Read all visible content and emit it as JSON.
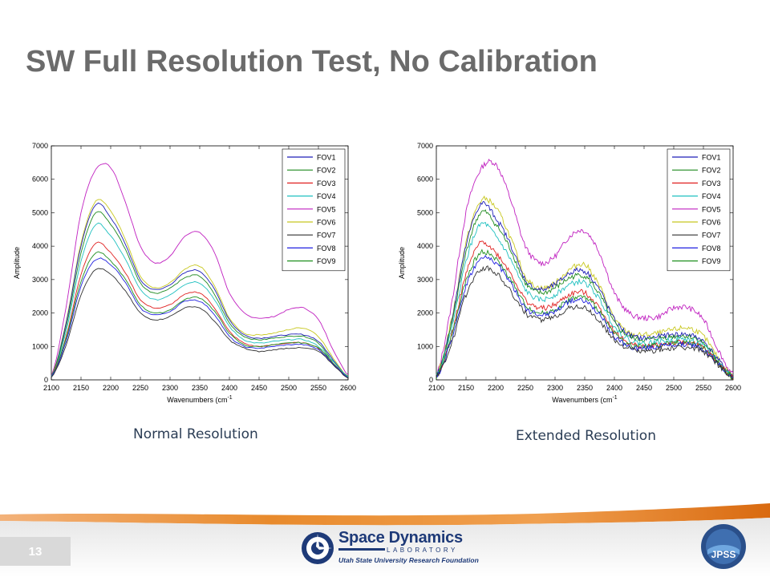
{
  "slide": {
    "title": "SW Full Resolution Test, No Calibration",
    "page_number": "13"
  },
  "captions": {
    "left": "Normal Resolution",
    "right": "Extended Resolution"
  },
  "logo": {
    "name": "Space Dynamics",
    "lab": "LABORATORY",
    "subtitle": "Utah State University Research Foundation",
    "jpss": "JPSS"
  },
  "chart_data": [
    {
      "type": "line",
      "title": "",
      "xlabel": "Wavenumbers (cm",
      "xlabel_sup": "-1",
      "ylabel": "Amplitude",
      "xlim": [
        2100,
        2600
      ],
      "ylim": [
        0,
        7000
      ],
      "xticks": [
        2100,
        2150,
        2200,
        2250,
        2300,
        2350,
        2400,
        2450,
        2500,
        2550,
        2600
      ],
      "yticks": [
        0,
        1000,
        2000,
        3000,
        4000,
        5000,
        6000,
        7000
      ],
      "legend_position": "top-right",
      "x": [
        2100,
        2125,
        2150,
        2175,
        2200,
        2225,
        2250,
        2275,
        2300,
        2325,
        2350,
        2375,
        2400,
        2425,
        2450,
        2475,
        2500,
        2525,
        2550,
        2575,
        2600
      ],
      "series": [
        {
          "name": "FOV1",
          "values": [
            100,
            1700,
            4000,
            5250,
            4850,
            4050,
            3000,
            2700,
            2850,
            3200,
            3250,
            2700,
            1800,
            1350,
            1250,
            1300,
            1350,
            1350,
            1150,
            600,
            100
          ]
        },
        {
          "name": "FOV2",
          "values": [
            100,
            1600,
            3800,
            5000,
            4650,
            3900,
            2900,
            2600,
            2750,
            3050,
            3100,
            2550,
            1700,
            1300,
            1200,
            1250,
            1300,
            1300,
            1100,
            550,
            100
          ]
        },
        {
          "name": "FOV3",
          "values": [
            100,
            1300,
            3150,
            4100,
            3800,
            3200,
            2400,
            2150,
            2250,
            2550,
            2600,
            2150,
            1450,
            1100,
            1000,
            1050,
            1100,
            1100,
            950,
            500,
            80
          ]
        },
        {
          "name": "FOV4",
          "values": [
            100,
            1450,
            3550,
            4650,
            4300,
            3600,
            2700,
            2400,
            2550,
            2850,
            2900,
            2400,
            1600,
            1200,
            1100,
            1150,
            1200,
            1200,
            1000,
            550,
            100
          ]
        },
        {
          "name": "FOV5",
          "values": [
            120,
            2200,
            5000,
            6300,
            6350,
            5300,
            4000,
            3500,
            3700,
            4300,
            4400,
            3800,
            2600,
            2000,
            1850,
            1900,
            2100,
            2150,
            1800,
            900,
            150
          ]
        },
        {
          "name": "FOV6",
          "values": [
            110,
            1750,
            4100,
            5350,
            5050,
            4200,
            3100,
            2750,
            2900,
            3300,
            3400,
            2800,
            1850,
            1400,
            1350,
            1400,
            1500,
            1550,
            1300,
            650,
            110
          ]
        },
        {
          "name": "FOV7",
          "values": [
            80,
            1050,
            2550,
            3300,
            3150,
            2650,
            2000,
            1800,
            1900,
            2150,
            2150,
            1750,
            1200,
            950,
            850,
            900,
            950,
            950,
            850,
            450,
            60
          ]
        },
        {
          "name": "FOV8",
          "values": [
            90,
            1150,
            2800,
            3600,
            3450,
            2900,
            2150,
            1950,
            2050,
            2350,
            2350,
            1950,
            1300,
            1000,
            950,
            1000,
            1050,
            1050,
            900,
            480,
            70
          ]
        },
        {
          "name": "FOV9",
          "values": [
            90,
            1250,
            2950,
            3800,
            3550,
            3000,
            2250,
            2000,
            2100,
            2400,
            2450,
            2050,
            1400,
            1050,
            1000,
            1050,
            1100,
            1100,
            950,
            500,
            75
          ]
        }
      ]
    },
    {
      "type": "line",
      "title": "",
      "xlabel": "Wavenumbers (cm",
      "xlabel_sup": "-1",
      "ylabel": "Amplitude",
      "xlim": [
        2100,
        2600
      ],
      "ylim": [
        0,
        7000
      ],
      "xticks": [
        2100,
        2150,
        2200,
        2250,
        2300,
        2350,
        2400,
        2450,
        2500,
        2550,
        2600
      ],
      "yticks": [
        0,
        1000,
        2000,
        3000,
        4000,
        5000,
        6000,
        7000
      ],
      "legend_position": "top-right",
      "x": [
        2100,
        2125,
        2150,
        2175,
        2200,
        2225,
        2250,
        2275,
        2300,
        2325,
        2350,
        2375,
        2400,
        2425,
        2450,
        2475,
        2500,
        2525,
        2550,
        2575,
        2600
      ],
      "series": [
        {
          "name": "FOV1",
          "values": [
            100,
            1700,
            4000,
            5250,
            4850,
            4050,
            3000,
            2700,
            2850,
            3200,
            3250,
            2700,
            1800,
            1350,
            1250,
            1300,
            1350,
            1350,
            1150,
            600,
            100
          ]
        },
        {
          "name": "FOV2",
          "values": [
            100,
            1600,
            3800,
            5000,
            4650,
            3900,
            2900,
            2600,
            2750,
            3050,
            3100,
            2550,
            1700,
            1300,
            1200,
            1250,
            1300,
            1300,
            1100,
            550,
            100
          ]
        },
        {
          "name": "FOV3",
          "values": [
            100,
            1300,
            3150,
            4100,
            3800,
            3200,
            2400,
            2150,
            2250,
            2550,
            2600,
            2150,
            1450,
            1100,
            1000,
            1050,
            1100,
            1100,
            950,
            500,
            80
          ]
        },
        {
          "name": "FOV4",
          "values": [
            100,
            1450,
            3550,
            4650,
            4300,
            3600,
            2700,
            2400,
            2550,
            2850,
            2900,
            2400,
            1600,
            1200,
            1100,
            1150,
            1200,
            1200,
            1000,
            550,
            100
          ]
        },
        {
          "name": "FOV5",
          "values": [
            120,
            2200,
            5000,
            6300,
            6450,
            5400,
            4000,
            3500,
            3700,
            4300,
            4450,
            3800,
            2600,
            2000,
            1850,
            1900,
            2150,
            2150,
            1800,
            900,
            150
          ]
        },
        {
          "name": "FOV6",
          "values": [
            110,
            1750,
            4100,
            5350,
            5150,
            4250,
            3100,
            2750,
            2900,
            3300,
            3450,
            2800,
            1850,
            1400,
            1350,
            1400,
            1500,
            1550,
            1300,
            650,
            110
          ]
        },
        {
          "name": "FOV7",
          "values": [
            80,
            1050,
            2550,
            3300,
            3200,
            2650,
            2000,
            1800,
            1900,
            2150,
            2150,
            1750,
            1200,
            950,
            850,
            900,
            950,
            950,
            850,
            450,
            60
          ]
        },
        {
          "name": "FOV8",
          "values": [
            90,
            1150,
            2800,
            3600,
            3500,
            2900,
            2150,
            1950,
            2050,
            2350,
            2350,
            1950,
            1300,
            1000,
            950,
            1000,
            1050,
            1050,
            900,
            480,
            70
          ]
        },
        {
          "name": "FOV9",
          "values": [
            90,
            1250,
            2950,
            3800,
            3600,
            3000,
            2250,
            2000,
            2100,
            2400,
            2450,
            2050,
            1400,
            1050,
            1000,
            1050,
            1100,
            1100,
            950,
            500,
            75
          ]
        }
      ]
    }
  ],
  "colors": {
    "FOV1": "#1f1fb8",
    "FOV2": "#1f8a1f",
    "FOV3": "#e02020",
    "FOV4": "#20c0c0",
    "FOV5": "#c020c0",
    "FOV6": "#c8c820",
    "FOV7": "#303030",
    "FOV8": "#2020e0",
    "FOV9": "#209020",
    "title": "#6b6b6b",
    "caption": "#2b3d55",
    "footer_orange": "#e07a1a"
  }
}
